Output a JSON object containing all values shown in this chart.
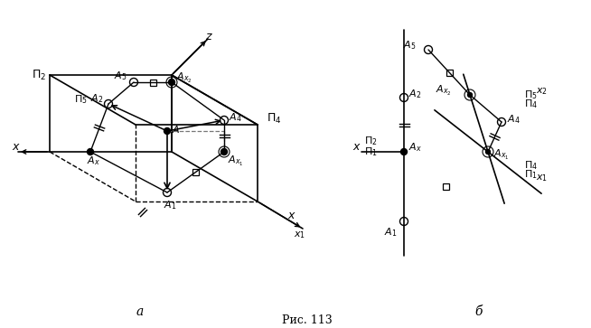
{
  "fig_width": 6.54,
  "fig_height": 3.63,
  "dpi": 100,
  "bg_color": "#ffffff",
  "caption_a": "a",
  "caption_b": "б",
  "caption_ris": "Рис. 113"
}
